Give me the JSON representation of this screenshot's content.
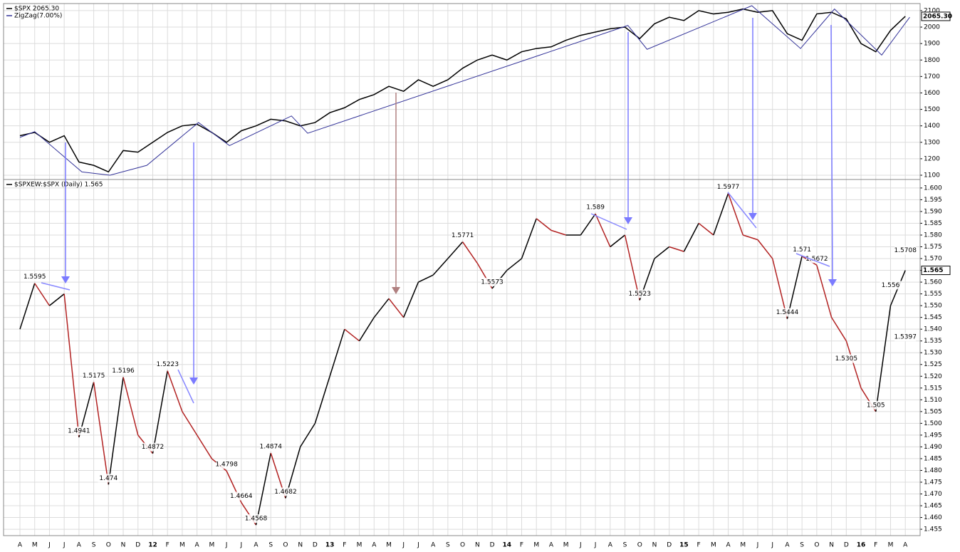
{
  "chart_data": [
    {
      "type": "line",
      "series": [
        {
          "name": "$SPX 2065.30",
          "color": "#000000",
          "values": [
            1340,
            1360,
            1300,
            1340,
            1180,
            1160,
            1120,
            1250,
            1240,
            1300,
            1360,
            1400,
            1410,
            1360,
            1300,
            1370,
            1400,
            1440,
            1430,
            1400,
            1420,
            1480,
            1510,
            1560,
            1590,
            1640,
            1610,
            1680,
            1640,
            1680,
            1750,
            1800,
            1830,
            1800,
            1850,
            1870,
            1880,
            1920,
            1950,
            1970,
            1990,
            2000,
            1930,
            2020,
            2060,
            2040,
            2100,
            2080,
            2090,
            2110,
            2090,
            2100,
            1960,
            1920,
            2080,
            2090,
            2050,
            1900,
            1850,
            1980,
            2065.3
          ]
        },
        {
          "name": "ZigZag(7.00%)",
          "color": "#333399",
          "x": [
            0,
            1,
            4.2,
            6.1,
            8.6,
            12.1,
            14.2,
            18.4,
            19.5,
            41.2,
            42.5,
            49.6,
            52.9,
            55.2,
            58.4,
            60.3
          ],
          "values": [
            1330,
            1365,
            1120,
            1100,
            1160,
            1420,
            1280,
            1460,
            1355,
            2010,
            1865,
            2130,
            1870,
            2110,
            1830,
            2060
          ]
        }
      ],
      "last_label": "2065.30",
      "ylim": [
        1074,
        2143
      ],
      "yticks": [
        1100,
        1200,
        1300,
        1400,
        1500,
        1600,
        1700,
        1800,
        1900,
        2000,
        2100
      ],
      "grid": true
    },
    {
      "type": "line",
      "categories": [
        "A",
        "M",
        "J",
        "J",
        "A",
        "S",
        "O",
        "N",
        "D",
        "12",
        "F",
        "M",
        "A",
        "M",
        "J",
        "J",
        "A",
        "S",
        "O",
        "N",
        "D",
        "13",
        "F",
        "M",
        "A",
        "M",
        "J",
        "J",
        "A",
        "S",
        "O",
        "N",
        "D",
        "14",
        "F",
        "M",
        "A",
        "M",
        "J",
        "J",
        "A",
        "S",
        "O",
        "N",
        "D",
        "15",
        "F",
        "M",
        "A",
        "M",
        "J",
        "J",
        "A",
        "S",
        "O",
        "N",
        "D",
        "16",
        "F",
        "M",
        "A"
      ],
      "series": [
        {
          "name": "$SPXEW:$SPX (Daily) 1.565",
          "color": "#000000",
          "down_color": "#b22222",
          "values": [
            1.54,
            1.5595,
            1.55,
            1.555,
            1.4941,
            1.5175,
            1.474,
            1.5196,
            1.495,
            1.4872,
            1.5223,
            1.505,
            1.495,
            1.485,
            1.4798,
            1.4664,
            1.4568,
            1.4874,
            1.4682,
            1.49,
            1.5,
            1.52,
            1.54,
            1.535,
            1.545,
            1.553,
            1.545,
            1.56,
            1.563,
            1.57,
            1.5771,
            1.568,
            1.5573,
            1.565,
            1.57,
            1.587,
            1.582,
            1.58,
            1.58,
            1.589,
            1.575,
            1.58,
            1.5523,
            1.57,
            1.575,
            1.573,
            1.585,
            1.58,
            1.5977,
            1.58,
            1.578,
            1.57,
            1.5444,
            1.571,
            1.5672,
            1.545,
            1.535,
            1.515,
            1.505,
            1.55,
            1.565
          ]
        }
      ],
      "annotations": [
        {
          "x": 1,
          "value": 1.5595
        },
        {
          "x": 4,
          "value": 1.4941
        },
        {
          "x": 5,
          "value": 1.5175
        },
        {
          "x": 6,
          "value": 1.474
        },
        {
          "x": 7,
          "value": 1.5196
        },
        {
          "x": 9,
          "value": 1.4872
        },
        {
          "x": 10,
          "value": 1.5223
        },
        {
          "x": 14,
          "value": 1.4798
        },
        {
          "x": 15,
          "value": 1.4664
        },
        {
          "x": 16,
          "value": 1.4568
        },
        {
          "x": 17,
          "value": 1.4874
        },
        {
          "x": 18,
          "value": 1.4682
        },
        {
          "x": 30,
          "value": 1.5771
        },
        {
          "x": 32,
          "value": 1.5573
        },
        {
          "x": 39,
          "value": 1.589
        },
        {
          "x": 42,
          "value": 1.5523
        },
        {
          "x": 48,
          "value": 1.5977
        },
        {
          "x": 52,
          "value": 1.5444
        },
        {
          "x": 53,
          "value": 1.571
        },
        {
          "x": 54,
          "value": 1.5672
        },
        {
          "x": 56,
          "value": 1.5305
        },
        {
          "x": 58,
          "value": 1.505
        },
        {
          "x": 59,
          "value": 1.556
        },
        {
          "x": 60,
          "value": 1.5397
        },
        {
          "x": 60,
          "value": 1.5708
        }
      ],
      "last_label": 1.565,
      "ylim": [
        1.4523,
        1.6036
      ],
      "yticks": [
        1.455,
        {
          "value": 1.46,
          "label": "1.460"
        },
        1.465,
        {
          "value": 1.47,
          "label": "1.470"
        },
        1.475,
        {
          "value": 1.48,
          "label": "1.480"
        },
        1.485,
        {
          "value": 1.49,
          "label": "1.490"
        },
        1.495,
        {
          "value": 1.5,
          "label": "1.500"
        },
        1.505,
        {
          "value": 1.51,
          "label": "1.510"
        },
        1.515,
        {
          "value": 1.52,
          "label": "1.520"
        },
        1.525,
        {
          "value": 1.53,
          "label": "1.530"
        },
        1.535,
        {
          "value": 1.54,
          "label": "1.540"
        },
        1.545,
        {
          "value": 1.55,
          "label": "1.550"
        },
        1.555,
        {
          "value": 1.56,
          "label": "1.560"
        },
        1.565,
        {
          "value": 1.57,
          "label": "1.570"
        },
        1.575,
        {
          "value": 1.58,
          "label": "1.580"
        },
        1.585,
        {
          "value": 1.59,
          "label": "1.590"
        },
        1.595,
        {
          "value": 1.6,
          "label": "1.600"
        }
      ],
      "grid": true
    }
  ]
}
